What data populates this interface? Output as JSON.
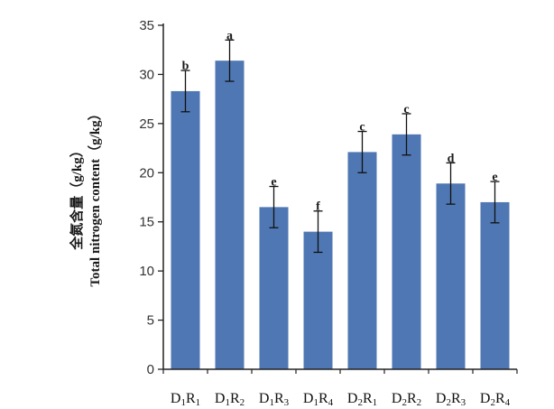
{
  "chart_data": {
    "type": "bar",
    "categories": [
      "D1R1",
      "D1R2",
      "D1R3",
      "D1R4",
      "D2R1",
      "D2R2",
      "D2R3",
      "D2R4"
    ],
    "category_parts": [
      [
        "D",
        "1",
        "R",
        "1"
      ],
      [
        "D",
        "1",
        "R",
        "2"
      ],
      [
        "D",
        "1",
        "R",
        "3"
      ],
      [
        "D",
        "1",
        "R",
        "4"
      ],
      [
        "D",
        "2",
        "R",
        "1"
      ],
      [
        "D",
        "2",
        "R",
        "2"
      ],
      [
        "D",
        "2",
        "R",
        "3"
      ],
      [
        "D",
        "2",
        "R",
        "4"
      ]
    ],
    "values": [
      28.3,
      31.4,
      16.5,
      14.0,
      22.1,
      23.9,
      18.9,
      17.0
    ],
    "errors": [
      2.1,
      2.1,
      2.1,
      2.1,
      2.1,
      2.1,
      2.1,
      2.1
    ],
    "letters": [
      "b",
      "a",
      "e",
      "f",
      "c",
      "c",
      "d",
      "e"
    ],
    "ylabel_line1": "全氮含量（g/kg）",
    "ylabel_line2": "Total nitrogen content（g/kg）",
    "yticks": [
      0,
      5,
      10,
      15,
      20,
      25,
      30,
      35
    ],
    "ylim": [
      0,
      35
    ],
    "bar_color": "#4f77b3",
    "grid": false,
    "title": "",
    "xlabel": ""
  }
}
